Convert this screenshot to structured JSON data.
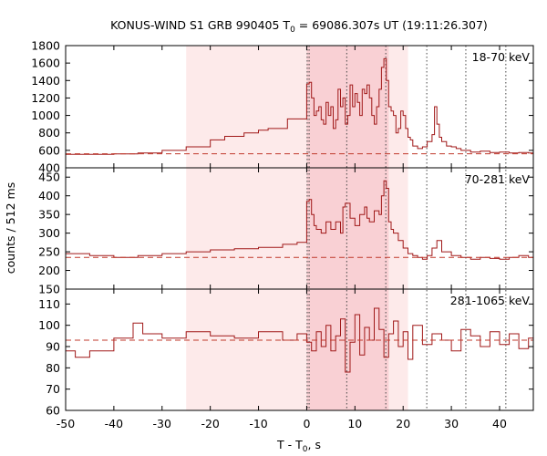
{
  "title": {
    "main": "KONUS-WIND S1 GRB 990405 T",
    "sub": "0",
    "rest": " = 69086.307s UT (19:11:26.307)"
  },
  "xaxis": {
    "label_main": "T - T",
    "label_sub": "0",
    "label_rest": ", s",
    "lim": [
      -50,
      47
    ],
    "ticks": [
      -50,
      -40,
      -30,
      -20,
      -10,
      0,
      10,
      20,
      30,
      40
    ]
  },
  "ylabel": "counts / 512 ms",
  "colors": {
    "curve": "#a01818",
    "background_line": "#c0392b",
    "shade_outer": "#fdeaea",
    "shade_inner": "#f9d0d4",
    "marker": "#444444"
  },
  "chart_data": {
    "type": "line",
    "interpolation": "step",
    "bin_width_s": 0.512,
    "shaded_intervals": [
      {
        "x0": -25,
        "x1": 21,
        "level": "outer"
      },
      {
        "x0": 0,
        "x1": 17,
        "level": "inner"
      }
    ],
    "vertical_markers": [
      0.1,
      0.5,
      8.3,
      16.4,
      24.9,
      33.0,
      41.3
    ],
    "panels": [
      {
        "name": "18-70 keV",
        "ylim": [
          400,
          1800
        ],
        "yticks": [
          400,
          600,
          800,
          1000,
          1200,
          1400,
          1600,
          1800
        ],
        "background": 560,
        "x": [
          -50,
          -40,
          -35,
          -30,
          -25,
          -20,
          -17,
          -13,
          -10,
          -8,
          -4,
          0,
          0.5,
          1,
          1.5,
          2,
          2.5,
          3,
          3.5,
          4,
          4.5,
          5,
          5.5,
          6,
          6.5,
          7,
          7.5,
          8,
          8.5,
          9,
          9.5,
          10,
          10.5,
          11,
          11.5,
          12,
          12.5,
          13,
          13.5,
          14,
          14.5,
          15,
          15.5,
          16,
          16.5,
          17,
          17.5,
          18,
          18.5,
          19,
          19.5,
          20,
          20.5,
          21,
          21.5,
          22,
          23,
          24,
          25,
          26,
          26.5,
          27,
          27.5,
          28,
          29,
          30,
          31,
          32,
          34,
          36,
          38,
          40,
          42,
          44,
          46
        ],
        "y": [
          555,
          560,
          570,
          600,
          640,
          720,
          760,
          800,
          830,
          850,
          960,
          1360,
          1380,
          1200,
          1000,
          1050,
          1100,
          950,
          900,
          1150,
          1000,
          1100,
          850,
          950,
          1300,
          1100,
          1200,
          900,
          1000,
          1350,
          1100,
          1250,
          1150,
          1000,
          1300,
          1250,
          1350,
          1200,
          1000,
          900,
          1100,
          1300,
          1550,
          1650,
          1400,
          1100,
          1050,
          1000,
          800,
          850,
          1050,
          1000,
          850,
          750,
          720,
          650,
          620,
          640,
          700,
          780,
          1100,
          900,
          750,
          700,
          650,
          640,
          620,
          600,
          580,
          590,
          575,
          580,
          570,
          575,
          570
        ]
      },
      {
        "name": "70-281 keV",
        "ylim": [
          150,
          475
        ],
        "yticks": [
          150,
          200,
          250,
          300,
          350,
          400,
          450
        ],
        "background": 235,
        "x": [
          -50,
          -45,
          -40,
          -35,
          -30,
          -25,
          -20,
          -15,
          -10,
          -5,
          -2,
          0,
          0.5,
          1,
          1.5,
          2,
          3,
          4,
          5,
          6,
          7,
          7.5,
          8,
          9,
          10,
          11,
          12,
          12.5,
          13,
          14,
          15,
          15.5,
          16,
          16.5,
          17,
          17.5,
          18,
          19,
          20,
          21,
          22,
          23,
          24,
          25,
          26,
          27,
          28,
          30,
          32,
          34,
          36,
          38,
          40,
          42,
          44,
          46
        ],
        "y": [
          245,
          240,
          235,
          240,
          245,
          250,
          255,
          258,
          262,
          270,
          275,
          385,
          390,
          350,
          320,
          310,
          300,
          330,
          310,
          330,
          300,
          370,
          380,
          340,
          320,
          350,
          370,
          340,
          330,
          360,
          350,
          400,
          440,
          420,
          330,
          310,
          300,
          280,
          260,
          245,
          240,
          235,
          230,
          240,
          260,
          280,
          250,
          240,
          235,
          230,
          235,
          232,
          230,
          235,
          240,
          235
        ]
      },
      {
        "name": "281-1065 keV",
        "ylim": [
          60,
          117
        ],
        "yticks": [
          60,
          70,
          80,
          90,
          100,
          110
        ],
        "background": 93,
        "x": [
          -50,
          -48,
          -45,
          -40,
          -36,
          -34,
          -30,
          -25,
          -20,
          -15,
          -10,
          -5,
          -2,
          0,
          1,
          2,
          3,
          4,
          5,
          6,
          7,
          8,
          9,
          10,
          11,
          12,
          13,
          14,
          15,
          16,
          17,
          18,
          19,
          20,
          21,
          22,
          24,
          26,
          28,
          30,
          32,
          34,
          36,
          38,
          40,
          42,
          44,
          46
        ],
        "y": [
          88,
          85,
          88,
          94,
          101,
          96,
          94,
          97,
          95,
          94,
          97,
          93,
          96,
          92,
          88,
          97,
          90,
          100,
          88,
          95,
          103,
          78,
          92,
          105,
          86,
          99,
          93,
          108,
          98,
          85,
          96,
          102,
          90,
          97,
          84,
          100,
          91,
          96,
          93,
          88,
          98,
          95,
          90,
          97,
          91,
          96,
          89,
          94
        ]
      }
    ]
  }
}
